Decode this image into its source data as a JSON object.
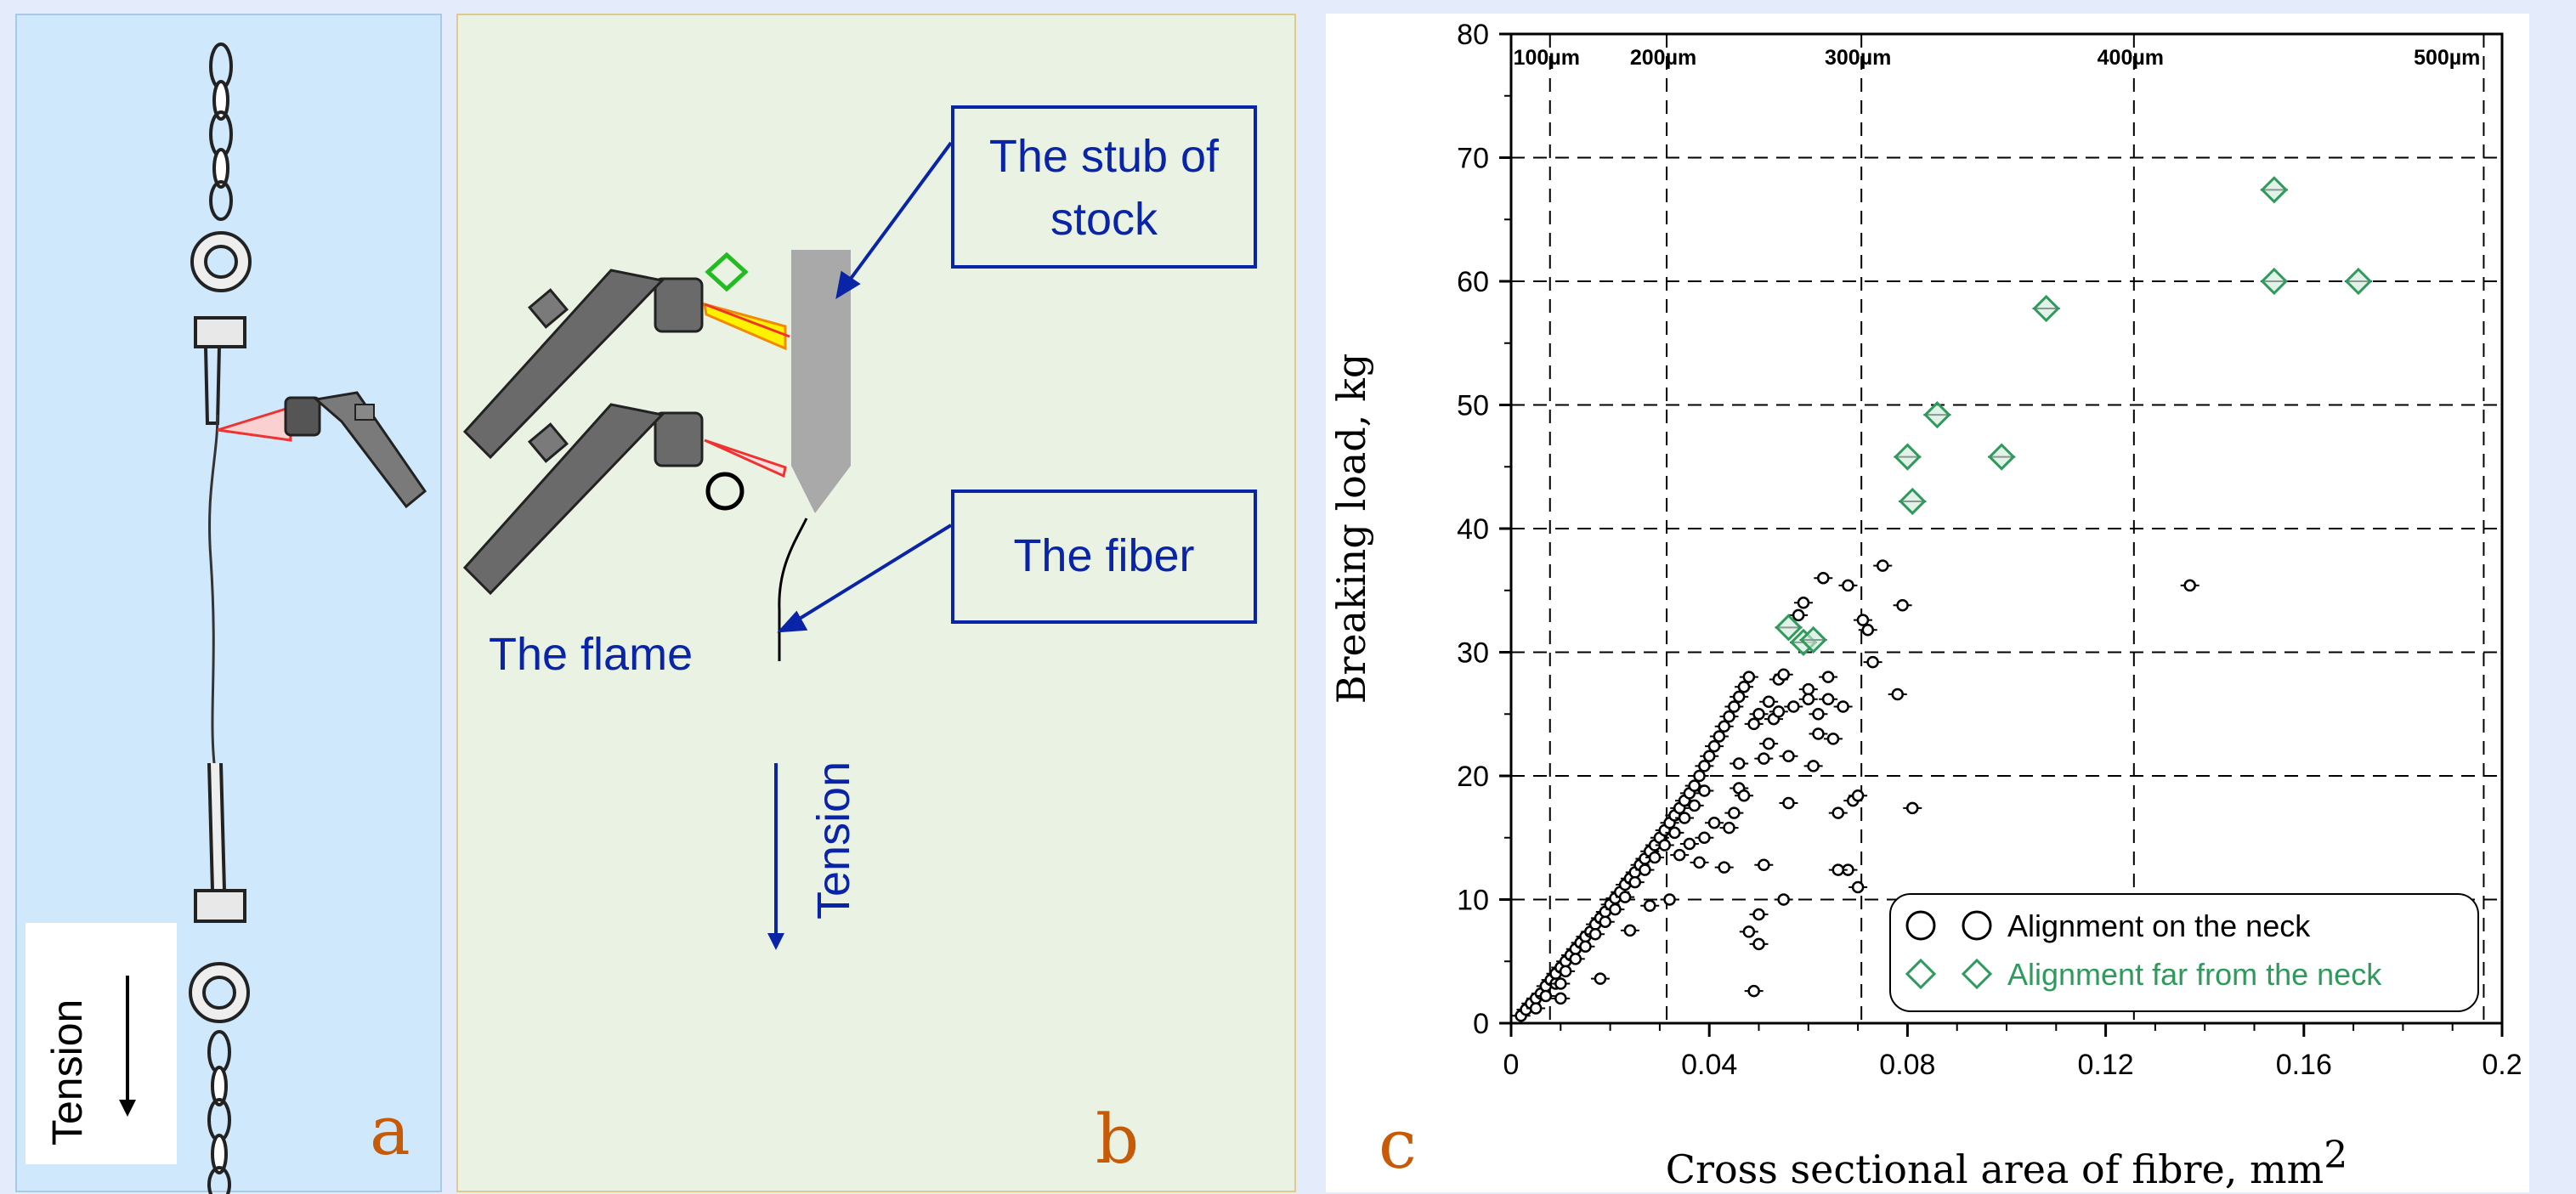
{
  "panel_a": {
    "tension_label": "Tension",
    "letter": "a"
  },
  "panel_b": {
    "stub_label_line1": "The stub of",
    "stub_label_line2": "stock",
    "fiber_label": "The fiber",
    "flame_label": "The flame",
    "tension_label": "Tension",
    "letter": "b"
  },
  "chart_data": {
    "type": "scatter",
    "letter": "c",
    "xlabel": "Cross sectional area of fibre, mm",
    "xlabel_superscript": "2",
    "ylabel": "Breaking load, kg",
    "xlim": [
      0,
      0.2
    ],
    "ylim": [
      0,
      80
    ],
    "x_ticks": [
      0,
      0.04,
      0.08,
      0.12,
      0.16,
      0.2
    ],
    "x_tick_labels": [
      "0",
      "0.04",
      "0.08",
      "0.12",
      "0.16",
      "0.2"
    ],
    "y_ticks": [
      0,
      10,
      20,
      30,
      40,
      50,
      60,
      70,
      80
    ],
    "y_tick_labels": [
      "0",
      "10",
      "20",
      "30",
      "40",
      "50",
      "60",
      "70",
      "80"
    ],
    "grid": "dashed",
    "diameter_lines": [
      {
        "label": "100µm",
        "x": 0.00785
      },
      {
        "label": "200µm",
        "x": 0.0314
      },
      {
        "label": "300µm",
        "x": 0.0707
      },
      {
        "label": "400µm",
        "x": 0.1257
      },
      {
        "label": "500µm",
        "x": 0.1963
      }
    ],
    "legend_position": "bottom-right",
    "colors": {
      "neck": "#000000",
      "far": "#2e9a5c"
    },
    "series": [
      {
        "name": "Alignment on the neck",
        "marker": "circle",
        "points": [
          [
            0.002,
            0.6
          ],
          [
            0.003,
            1.1
          ],
          [
            0.004,
            1.6
          ],
          [
            0.005,
            2.0
          ],
          [
            0.006,
            2.4
          ],
          [
            0.007,
            3.0
          ],
          [
            0.008,
            3.5
          ],
          [
            0.009,
            4.0
          ],
          [
            0.01,
            4.5
          ],
          [
            0.011,
            5.0
          ],
          [
            0.012,
            5.5
          ],
          [
            0.013,
            6.0
          ],
          [
            0.014,
            6.5
          ],
          [
            0.015,
            7.0
          ],
          [
            0.016,
            7.4
          ],
          [
            0.017,
            8.0
          ],
          [
            0.018,
            8.5
          ],
          [
            0.019,
            9.0
          ],
          [
            0.02,
            9.6
          ],
          [
            0.021,
            10.1
          ],
          [
            0.022,
            10.6
          ],
          [
            0.023,
            11.2
          ],
          [
            0.024,
            11.7
          ],
          [
            0.025,
            12.2
          ],
          [
            0.026,
            12.8
          ],
          [
            0.027,
            13.3
          ],
          [
            0.028,
            13.9
          ],
          [
            0.029,
            14.4
          ],
          [
            0.03,
            15.0
          ],
          [
            0.031,
            15.6
          ],
          [
            0.032,
            16.2
          ],
          [
            0.033,
            16.8
          ],
          [
            0.034,
            17.4
          ],
          [
            0.035,
            18.0
          ],
          [
            0.036,
            18.6
          ],
          [
            0.037,
            19.2
          ],
          [
            0.038,
            20.0
          ],
          [
            0.039,
            20.8
          ],
          [
            0.04,
            21.6
          ],
          [
            0.041,
            22.4
          ],
          [
            0.042,
            23.2
          ],
          [
            0.043,
            24.0
          ],
          [
            0.044,
            24.8
          ],
          [
            0.045,
            25.6
          ],
          [
            0.046,
            26.4
          ],
          [
            0.047,
            27.2
          ],
          [
            0.048,
            28.0
          ],
          [
            0.005,
            1.2
          ],
          [
            0.007,
            2.2
          ],
          [
            0.009,
            3.2
          ],
          [
            0.011,
            4.2
          ],
          [
            0.013,
            5.2
          ],
          [
            0.015,
            6.2
          ],
          [
            0.017,
            7.2
          ],
          [
            0.019,
            8.2
          ],
          [
            0.021,
            9.2
          ],
          [
            0.023,
            10.2
          ],
          [
            0.025,
            11.4
          ],
          [
            0.027,
            12.4
          ],
          [
            0.029,
            13.4
          ],
          [
            0.031,
            14.4
          ],
          [
            0.033,
            15.4
          ],
          [
            0.035,
            16.6
          ],
          [
            0.037,
            17.6
          ],
          [
            0.039,
            18.8
          ],
          [
            0.01,
            2.0
          ],
          [
            0.01,
            3.2
          ],
          [
            0.018,
            3.6
          ],
          [
            0.024,
            7.5
          ],
          [
            0.028,
            9.5
          ],
          [
            0.032,
            10.0
          ],
          [
            0.034,
            13.6
          ],
          [
            0.036,
            14.5
          ],
          [
            0.038,
            13.0
          ],
          [
            0.039,
            15.0
          ],
          [
            0.041,
            16.2
          ],
          [
            0.043,
            12.6
          ],
          [
            0.044,
            15.8
          ],
          [
            0.045,
            17.0
          ],
          [
            0.046,
            19.0
          ],
          [
            0.047,
            18.4
          ],
          [
            0.048,
            7.4
          ],
          [
            0.049,
            2.6
          ],
          [
            0.05,
            6.4
          ],
          [
            0.05,
            8.8
          ],
          [
            0.051,
            12.8
          ],
          [
            0.051,
            21.4
          ],
          [
            0.052,
            22.6
          ],
          [
            0.053,
            24.6
          ],
          [
            0.054,
            25.2
          ],
          [
            0.054,
            27.8
          ],
          [
            0.055,
            28.2
          ],
          [
            0.055,
            10.0
          ],
          [
            0.056,
            17.8
          ],
          [
            0.057,
            25.6
          ],
          [
            0.058,
            33.0
          ],
          [
            0.059,
            34.0
          ],
          [
            0.06,
            27.0
          ],
          [
            0.061,
            20.8
          ],
          [
            0.062,
            25.0
          ],
          [
            0.063,
            36.0
          ],
          [
            0.064,
            28.0
          ],
          [
            0.065,
            23.0
          ],
          [
            0.066,
            17.0
          ],
          [
            0.067,
            25.6
          ],
          [
            0.068,
            12.4
          ],
          [
            0.068,
            35.4
          ],
          [
            0.069,
            18.0
          ],
          [
            0.07,
            18.4
          ],
          [
            0.07,
            11.0
          ],
          [
            0.071,
            32.6
          ],
          [
            0.072,
            31.8
          ],
          [
            0.073,
            29.2
          ],
          [
            0.075,
            37.0
          ],
          [
            0.078,
            26.6
          ],
          [
            0.079,
            33.8
          ],
          [
            0.081,
            17.4
          ],
          [
            0.137,
            35.4
          ],
          [
            0.046,
            21.0
          ],
          [
            0.049,
            24.2
          ],
          [
            0.05,
            25.0
          ],
          [
            0.052,
            26.0
          ],
          [
            0.056,
            21.6
          ],
          [
            0.06,
            26.2
          ],
          [
            0.062,
            23.4
          ],
          [
            0.064,
            26.2
          ],
          [
            0.066,
            12.4
          ]
        ]
      },
      {
        "name": "Alignment far from the neck",
        "marker": "diamond",
        "points": [
          [
            0.056,
            32.0
          ],
          [
            0.059,
            30.8
          ],
          [
            0.061,
            31.0
          ],
          [
            0.08,
            45.8
          ],
          [
            0.081,
            42.2
          ],
          [
            0.086,
            49.2
          ],
          [
            0.099,
            45.8
          ],
          [
            0.108,
            57.8
          ],
          [
            0.154,
            67.4
          ],
          [
            0.154,
            60.0
          ],
          [
            0.171,
            60.0
          ]
        ]
      }
    ]
  }
}
